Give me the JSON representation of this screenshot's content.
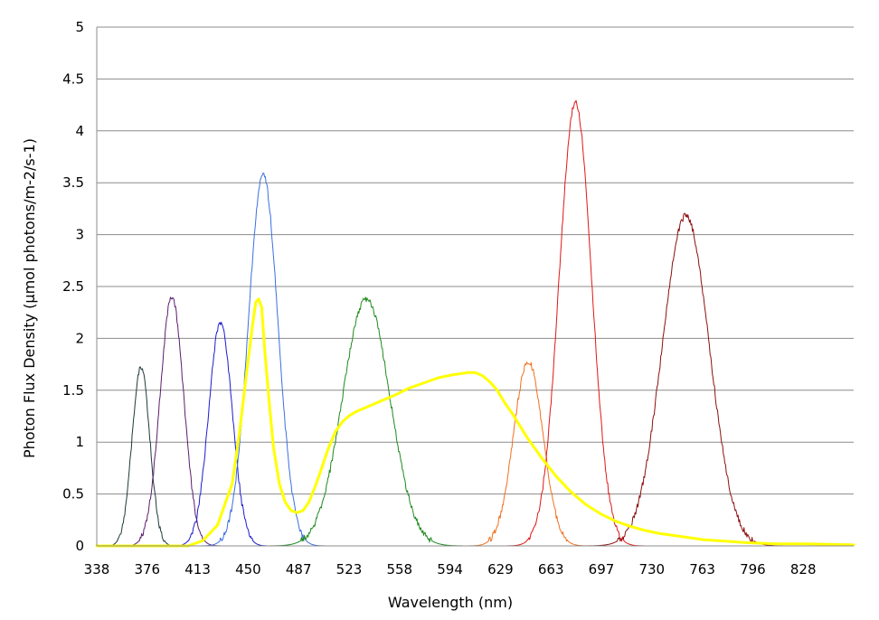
{
  "chart_data": {
    "type": "line",
    "title": "",
    "xlabel": "Wavelength (nm)",
    "ylabel": "Photon Flux Density (µmol photons/m-2/s-1)",
    "xlim": [
      338,
      852
    ],
    "ylim": [
      0,
      5
    ],
    "y_ticks": [
      "0",
      "0.5",
      "1",
      "1.5",
      "2",
      "2.5",
      "3",
      "3.5",
      "4",
      "4.5",
      "5"
    ],
    "x_ticks": [
      "338",
      "376",
      "413",
      "450",
      "487",
      "523",
      "558",
      "594",
      "629",
      "663",
      "697",
      "730",
      "763",
      "796",
      "828"
    ],
    "grid": "horizontal",
    "legend": "none",
    "series": [
      {
        "color": "#1f3a3a",
        "stroke_width": 1,
        "shape": "peak",
        "peak_nm": 368,
        "peak_value": 1.73,
        "width_nm": 6
      },
      {
        "color": "#5a1e6e",
        "stroke_width": 1,
        "shape": "peak",
        "peak_nm": 389,
        "peak_value": 2.4,
        "width_nm": 8
      },
      {
        "color": "#1c1cd0",
        "stroke_width": 1,
        "shape": "peak",
        "peak_nm": 422,
        "peak_value": 2.15,
        "width_nm": 8
      },
      {
        "color": "#3b6fe0",
        "stroke_width": 1,
        "shape": "peak",
        "peak_nm": 451,
        "peak_value": 3.58,
        "width_nm": 10
      },
      {
        "color": "#1f8a1f",
        "stroke_width": 1,
        "shape": "peak",
        "peak_nm": 521,
        "peak_value": 2.38,
        "width_nm": 16
      },
      {
        "color": "#f07020",
        "stroke_width": 1,
        "shape": "peak",
        "peak_nm": 631,
        "peak_value": 1.78,
        "width_nm": 10
      },
      {
        "color": "#e01818",
        "stroke_width": 1,
        "shape": "peak",
        "peak_nm": 663,
        "peak_value": 4.27,
        "width_nm": 11
      },
      {
        "color": "#8b1010",
        "stroke_width": 1,
        "shape": "peak",
        "peak_nm": 738,
        "peak_value": 3.18,
        "width_nm": 16
      },
      {
        "color": "#ffff00",
        "stroke_width": 3,
        "shape": "points",
        "x": [
          338,
          400,
          410,
          420,
          430,
          435,
          440,
          444,
          446,
          448,
          450,
          452,
          455,
          458,
          462,
          466,
          470,
          474,
          478,
          482,
          486,
          490,
          495,
          500,
          505,
          510,
          515,
          520,
          525,
          530,
          540,
          550,
          560,
          570,
          580,
          590,
          595,
          600,
          605,
          610,
          615,
          620,
          630,
          640,
          650,
          660,
          670,
          680,
          690,
          700,
          710,
          720,
          730,
          740,
          750,
          760,
          770,
          780,
          800,
          820,
          852
        ],
        "y": [
          0,
          0,
          0.05,
          0.2,
          0.6,
          1.1,
          1.7,
          2.15,
          2.35,
          2.38,
          2.3,
          1.9,
          1.4,
          0.95,
          0.6,
          0.42,
          0.34,
          0.32,
          0.34,
          0.42,
          0.56,
          0.72,
          0.93,
          1.1,
          1.2,
          1.26,
          1.3,
          1.33,
          1.36,
          1.39,
          1.45,
          1.52,
          1.57,
          1.62,
          1.65,
          1.67,
          1.67,
          1.64,
          1.58,
          1.5,
          1.38,
          1.28,
          1.05,
          0.85,
          0.67,
          0.52,
          0.4,
          0.31,
          0.24,
          0.19,
          0.15,
          0.12,
          0.1,
          0.08,
          0.06,
          0.05,
          0.04,
          0.03,
          0.02,
          0.02,
          0.01
        ]
      }
    ]
  }
}
